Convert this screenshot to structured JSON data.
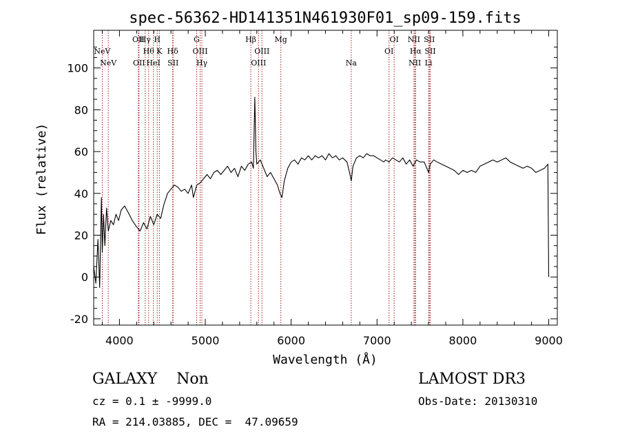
{
  "chart_data": {
    "type": "line",
    "title": "spec-56362-HD141351N461930F01_sp09-159.fits",
    "xlabel": "Wavelength (Å)",
    "ylabel": "Flux (relative)",
    "xlim": [
      3700,
      9100
    ],
    "ylim": [
      -23,
      118
    ],
    "xticks": [
      4000,
      5000,
      6000,
      7000,
      8000,
      9000
    ],
    "yticks": [
      -20,
      0,
      20,
      40,
      60,
      80,
      100
    ],
    "grid": false,
    "line_color": "#000000",
    "marker_color": "#a01818",
    "series": [
      {
        "name": "spectrum",
        "points": [
          [
            3700,
            5
          ],
          [
            3725,
            -3
          ],
          [
            3750,
            18
          ],
          [
            3770,
            -5
          ],
          [
            3790,
            38
          ],
          [
            3800,
            12
          ],
          [
            3815,
            30
          ],
          [
            3830,
            15
          ],
          [
            3850,
            33
          ],
          [
            3870,
            22
          ],
          [
            3900,
            27
          ],
          [
            3930,
            25
          ],
          [
            3960,
            30
          ],
          [
            3990,
            27
          ],
          [
            4020,
            32
          ],
          [
            4060,
            34
          ],
          [
            4100,
            31
          ],
          [
            4150,
            27
          ],
          [
            4200,
            24
          ],
          [
            4240,
            22
          ],
          [
            4280,
            26
          ],
          [
            4320,
            23
          ],
          [
            4360,
            29
          ],
          [
            4400,
            25
          ],
          [
            4440,
            30
          ],
          [
            4480,
            28
          ],
          [
            4520,
            35
          ],
          [
            4560,
            40
          ],
          [
            4600,
            42
          ],
          [
            4640,
            44
          ],
          [
            4680,
            43
          ],
          [
            4720,
            41
          ],
          [
            4760,
            42
          ],
          [
            4800,
            40
          ],
          [
            4840,
            44
          ],
          [
            4861,
            38
          ],
          [
            4900,
            44
          ],
          [
            4940,
            45
          ],
          [
            4980,
            47
          ],
          [
            5020,
            49
          ],
          [
            5060,
            47
          ],
          [
            5100,
            50
          ],
          [
            5140,
            51
          ],
          [
            5180,
            49
          ],
          [
            5220,
            51
          ],
          [
            5260,
            53
          ],
          [
            5300,
            50
          ],
          [
            5340,
            52
          ],
          [
            5380,
            48
          ],
          [
            5420,
            53
          ],
          [
            5460,
            51
          ],
          [
            5500,
            54
          ],
          [
            5540,
            55
          ],
          [
            5560,
            52
          ],
          [
            5577,
            86
          ],
          [
            5590,
            60
          ],
          [
            5600,
            54
          ],
          [
            5640,
            56
          ],
          [
            5680,
            52
          ],
          [
            5720,
            48
          ],
          [
            5760,
            50
          ],
          [
            5800,
            47
          ],
          [
            5840,
            44
          ],
          [
            5870,
            40
          ],
          [
            5893,
            38
          ],
          [
            5920,
            46
          ],
          [
            5960,
            52
          ],
          [
            6000,
            55
          ],
          [
            6040,
            56
          ],
          [
            6080,
            54
          ],
          [
            6120,
            57
          ],
          [
            6160,
            56
          ],
          [
            6200,
            58
          ],
          [
            6240,
            56
          ],
          [
            6280,
            58
          ],
          [
            6320,
            57
          ],
          [
            6360,
            58
          ],
          [
            6400,
            56
          ],
          [
            6440,
            59
          ],
          [
            6480,
            57
          ],
          [
            6520,
            58
          ],
          [
            6560,
            56
          ],
          [
            6600,
            57
          ],
          [
            6650,
            55
          ],
          [
            6680,
            50
          ],
          [
            6700,
            46
          ],
          [
            6720,
            53
          ],
          [
            6760,
            57
          ],
          [
            6800,
            58
          ],
          [
            6840,
            57
          ],
          [
            6880,
            59
          ],
          [
            6920,
            58
          ],
          [
            6960,
            58
          ],
          [
            7000,
            57
          ],
          [
            7040,
            56
          ],
          [
            7080,
            55
          ],
          [
            7100,
            56
          ],
          [
            7140,
            55
          ],
          [
            7180,
            57
          ],
          [
            7220,
            56
          ],
          [
            7260,
            55
          ],
          [
            7300,
            57
          ],
          [
            7340,
            54
          ],
          [
            7380,
            56
          ],
          [
            7420,
            53
          ],
          [
            7460,
            56
          ],
          [
            7500,
            55
          ],
          [
            7550,
            55
          ],
          [
            7580,
            52
          ],
          [
            7600,
            50
          ],
          [
            7620,
            54
          ],
          [
            7660,
            56
          ],
          [
            7700,
            55
          ],
          [
            7750,
            54
          ],
          [
            7800,
            53
          ],
          [
            7850,
            52
          ],
          [
            7900,
            51
          ],
          [
            7950,
            49
          ],
          [
            8000,
            51
          ],
          [
            8050,
            50
          ],
          [
            8100,
            51
          ],
          [
            8150,
            50
          ],
          [
            8200,
            53
          ],
          [
            8250,
            54
          ],
          [
            8300,
            55
          ],
          [
            8350,
            56
          ],
          [
            8400,
            55
          ],
          [
            8450,
            56
          ],
          [
            8500,
            57
          ],
          [
            8550,
            55
          ],
          [
            8600,
            54
          ],
          [
            8650,
            53
          ],
          [
            8700,
            52
          ],
          [
            8750,
            53
          ],
          [
            8800,
            52
          ],
          [
            8850,
            50
          ],
          [
            8900,
            51
          ],
          [
            8950,
            52
          ],
          [
            8990,
            54
          ],
          [
            9000,
            0
          ]
        ]
      }
    ],
    "lines": [
      {
        "label": "NeV",
        "x": 3800,
        "row": 2
      },
      {
        "label": "NeV",
        "x": 3870,
        "row": 3
      },
      {
        "label": "OII",
        "x": 4220,
        "row": 1
      },
      {
        "label": "OII",
        "x": 4228,
        "row": 3
      },
      {
        "label": "Hγ",
        "x": 4300,
        "row": 1
      },
      {
        "label": "Hθ",
        "x": 4340,
        "row": 2
      },
      {
        "label": "H",
        "x": 4440,
        "row": 1
      },
      {
        "label": "HeI",
        "x": 4395,
        "row": 3
      },
      {
        "label": "K",
        "x": 4465,
        "row": 2
      },
      {
        "label": "Hδ",
        "x": 4620,
        "row": 2
      },
      {
        "label": "SII",
        "x": 4625,
        "row": 3
      },
      {
        "label": "G",
        "x": 4900,
        "row": 1
      },
      {
        "label": "OIII",
        "x": 4940,
        "row": 2
      },
      {
        "label": "Hγ",
        "x": 4960,
        "row": 3
      },
      {
        "label": "Hβ",
        "x": 5530,
        "row": 1
      },
      {
        "label": "OIII",
        "x": 5660,
        "row": 2
      },
      {
        "label": "OIII",
        "x": 5620,
        "row": 3
      },
      {
        "label": "Mg",
        "x": 5880,
        "row": 1
      },
      {
        "label": "Na",
        "x": 6700,
        "row": 3
      },
      {
        "label": "OI",
        "x": 7200,
        "row": 1
      },
      {
        "label": "OI",
        "x": 7140,
        "row": 2
      },
      {
        "label": "NII",
        "x": 7430,
        "row": 1
      },
      {
        "label": "Hα",
        "x": 7450,
        "row": 2
      },
      {
        "label": "NII",
        "x": 7440,
        "row": 3
      },
      {
        "label": "SII",
        "x": 7610,
        "row": 1
      },
      {
        "label": "SII",
        "x": 7620,
        "row": 2
      },
      {
        "label": "Li",
        "x": 7600,
        "row": 3
      }
    ]
  },
  "footer": {
    "classification": "GALAXY    Non",
    "survey": "LAMOST DR3",
    "redshift": "cz = 0.1 ± -9999.0",
    "obs_date": "Obs-Date: 20130310",
    "coordinates": "RA = 214.03885, DEC =  47.09659"
  }
}
